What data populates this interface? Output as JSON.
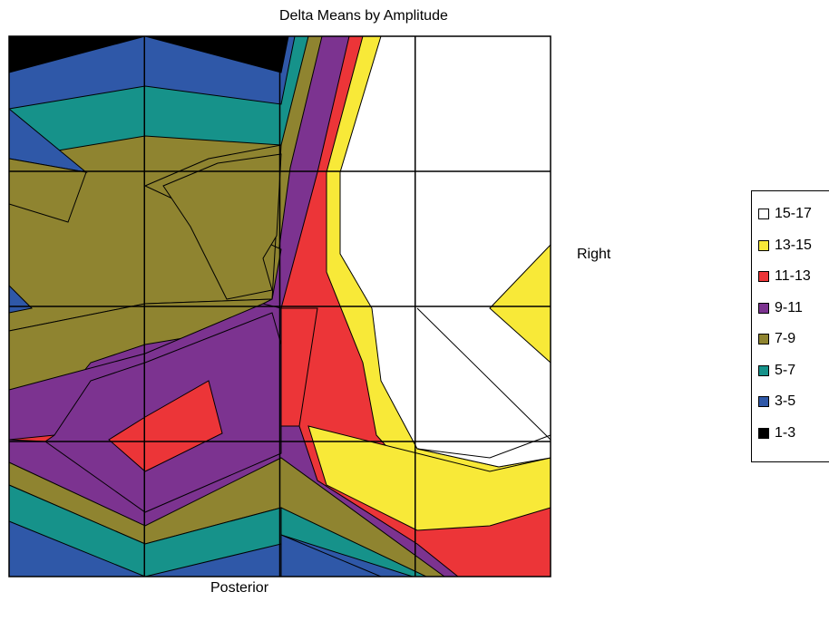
{
  "chart_data": {
    "type": "heatmap",
    "subtype": "filled-contour",
    "title": "Delta Means by Amplitude",
    "xlabel": "Posterior",
    "side_label": "Right",
    "grid": true,
    "grid_divisions": {
      "columns": 4,
      "rows": 4
    },
    "legend_position": "right",
    "legend": [
      {
        "label": "15-17",
        "color": "#ffffff"
      },
      {
        "label": "13-15",
        "color": "#f8e938"
      },
      {
        "label": "11-13",
        "color": "#ec3538"
      },
      {
        "label": "9-11",
        "color": "#7c3390"
      },
      {
        "label": "7-9",
        "color": "#8f8430"
      },
      {
        "label": "5-7",
        "color": "#16928a"
      },
      {
        "label": "3-5",
        "color": "#2f58a8"
      },
      {
        "label": "1-3",
        "color": "#000000"
      }
    ]
  }
}
